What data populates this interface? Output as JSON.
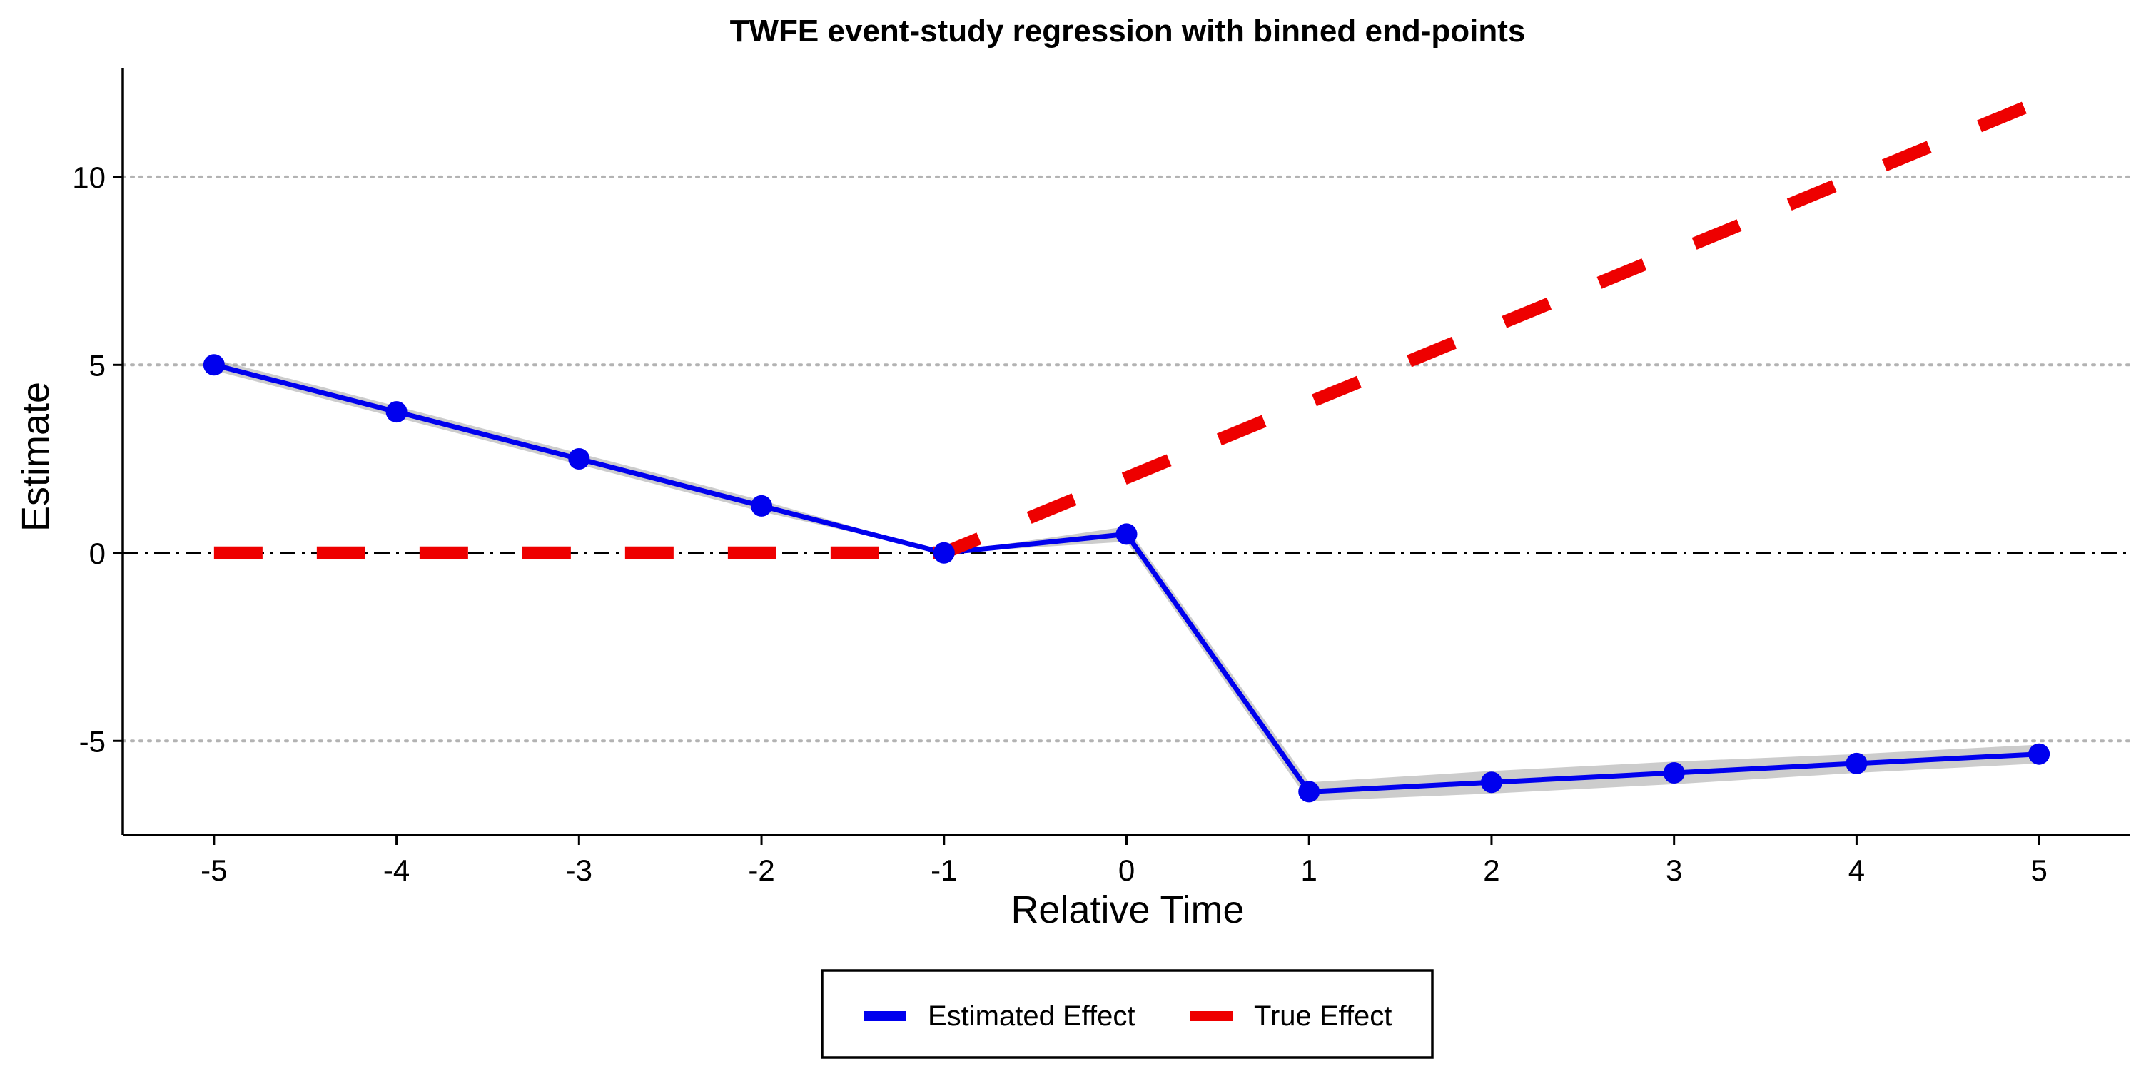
{
  "chart_data": {
    "type": "line",
    "title": "TWFE event-study regression with binned end-points",
    "xlabel": "Relative Time",
    "ylabel": "Estimate",
    "x": [
      -5,
      -4,
      -3,
      -2,
      -1,
      0,
      1,
      2,
      3,
      4,
      5
    ],
    "xlim": [
      -5.5,
      5.5
    ],
    "ylim": [
      -7.5,
      12.9
    ],
    "xticks": [
      -5,
      -4,
      -3,
      -2,
      -1,
      0,
      1,
      2,
      3,
      4,
      5
    ],
    "yticks": [
      -5,
      0,
      5,
      10
    ],
    "grid": "horizontal dotted at -5, 5, 10",
    "reference_line": 0,
    "legend_position": "bottom",
    "series": [
      {
        "name": "Estimated Effect",
        "color": "#0000ee",
        "style": "solid",
        "markers": true,
        "values": [
          5.0,
          3.75,
          2.5,
          1.25,
          0.0,
          0.5,
          -6.35,
          -6.1,
          -5.85,
          -5.6,
          -5.35
        ],
        "ci_lower": [
          4.85,
          3.6,
          2.35,
          1.1,
          0.0,
          0.3,
          -6.6,
          -6.4,
          -6.15,
          -5.85,
          -5.6
        ],
        "ci_upper": [
          5.15,
          3.9,
          2.65,
          1.4,
          0.0,
          0.7,
          -6.1,
          -5.8,
          -5.55,
          -5.35,
          -5.1
        ]
      },
      {
        "name": "True Effect",
        "color": "#ee0000",
        "style": "dashed",
        "markers": false,
        "values": [
          0,
          0,
          0,
          0,
          0,
          2,
          4,
          6,
          8,
          10,
          12
        ]
      }
    ]
  }
}
